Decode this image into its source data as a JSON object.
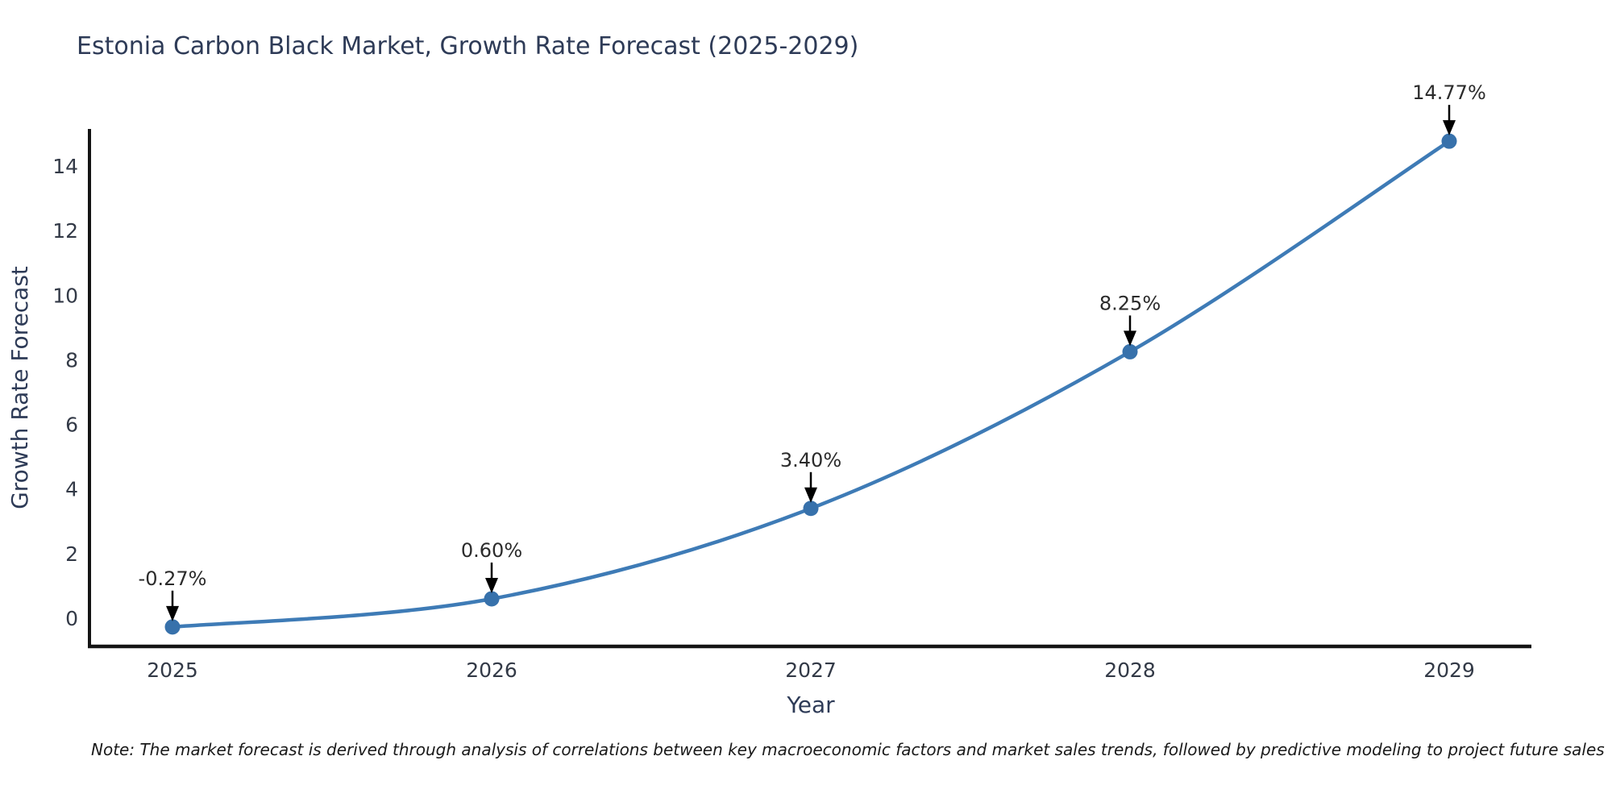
{
  "title": "Estonia Carbon Black Market, Growth Rate Forecast (2025-2029)",
  "note": "Note: The market forecast is derived through analysis of correlations between key macroeconomic factors and market sales trends, followed by predictive modeling to project future sales",
  "chart_data": {
    "type": "line",
    "title": "Estonia Carbon Black Market, Growth Rate Forecast (2025-2029)",
    "xlabel": "Year",
    "ylabel": "Growth Rate Forecast",
    "x": [
      2025,
      2026,
      2027,
      2028,
      2029
    ],
    "values": [
      -0.27,
      0.6,
      3.4,
      8.25,
      14.77
    ],
    "point_labels": [
      "-0.27%",
      "0.60%",
      "3.40%",
      "8.25%",
      "14.77%"
    ],
    "xticks": [
      "2025",
      "2026",
      "2027",
      "2028",
      "2029"
    ],
    "yticks": [
      0,
      2,
      4,
      6,
      8,
      10,
      12,
      14
    ],
    "ylim": [
      -0.9,
      15.2
    ],
    "grid": false,
    "legend": null,
    "annotation_style": "black-arrow-pointing-down-to-marker",
    "colors": {
      "line": "#3e7bb6",
      "marker": "#3771ab",
      "axis_spine": "#141414",
      "arrow": "#000000",
      "tick_text": "#333a47",
      "title_text": "#2e3b57",
      "annotation_text": "#2b2b2b"
    }
  }
}
